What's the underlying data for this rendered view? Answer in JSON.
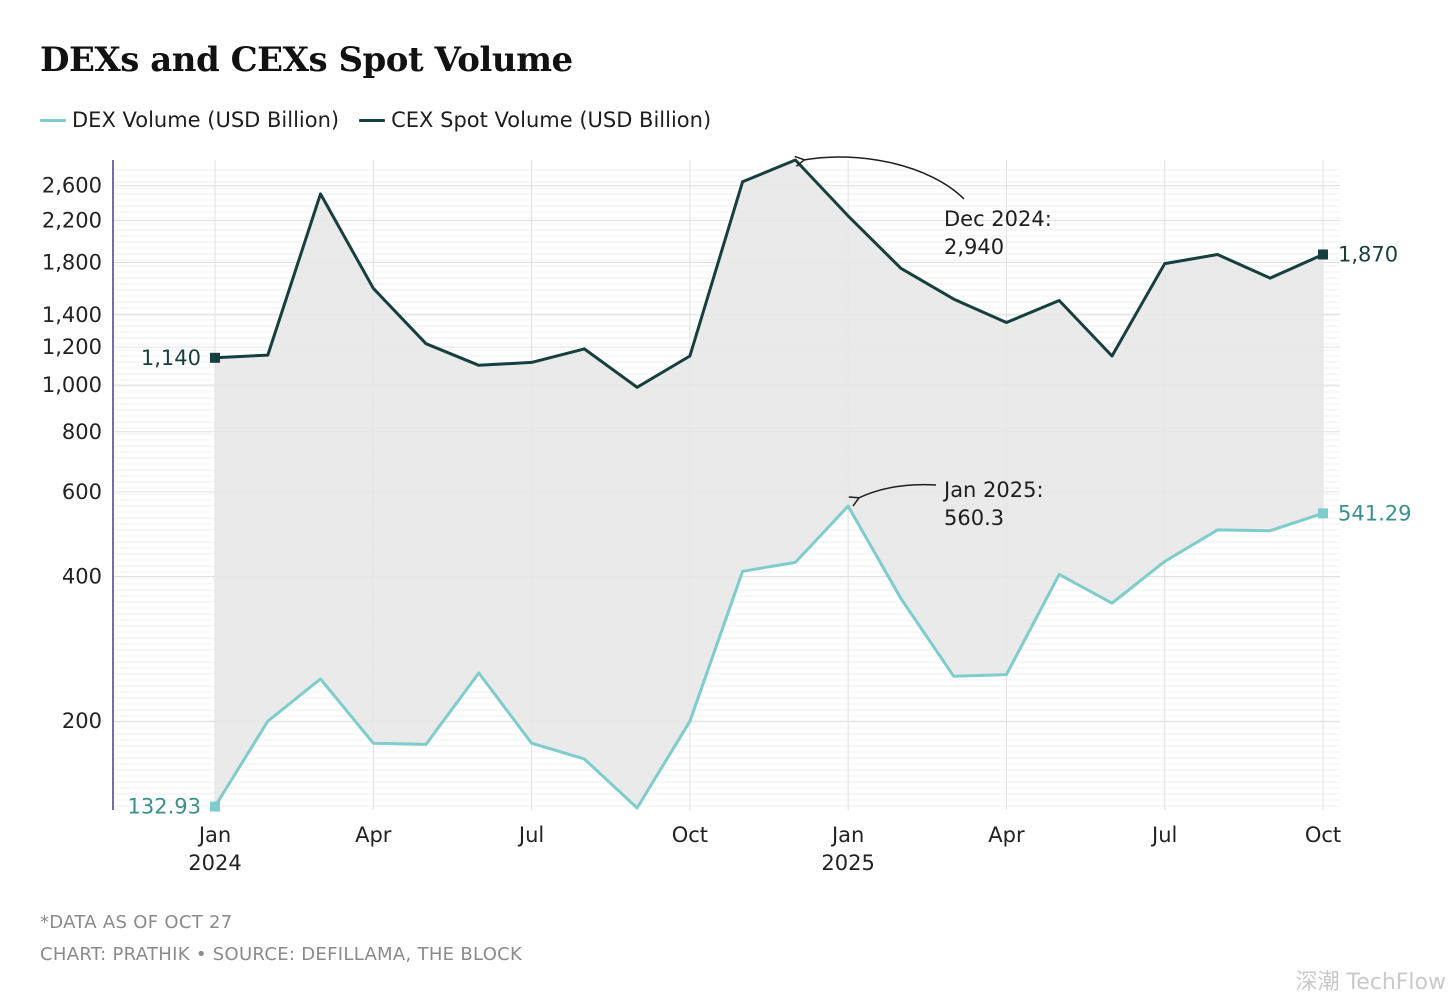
{
  "title": "DEXs and CEXs Spot Volume",
  "legend": {
    "dex": "DEX Volume (USD Billion)",
    "cex": "CEX Spot Volume (USD Billion)"
  },
  "colors": {
    "dex": "#7fcccc",
    "cex": "#173f3f",
    "fill": "#e6e6e6",
    "grid": "#e0e0e0",
    "axis": "#4b3f8f"
  },
  "chart_data": {
    "type": "line",
    "title": "DEXs and CEXs Spot Volume",
    "xlabel": "",
    "ylabel": "",
    "yscale": "log",
    "ylim": [
      132,
      2940
    ],
    "y_ticks": [
      200,
      400,
      600,
      800,
      1000,
      1200,
      1400,
      1800,
      2200,
      2600
    ],
    "y_tick_labels": [
      "200",
      "400",
      "600",
      "800",
      "1,000",
      "1,200",
      "1,400",
      "1,800",
      "2,200",
      "2,600"
    ],
    "x": [
      "2024-01",
      "2024-02",
      "2024-03",
      "2024-04",
      "2024-05",
      "2024-06",
      "2024-07",
      "2024-08",
      "2024-09",
      "2024-10",
      "2024-11",
      "2024-12",
      "2025-01",
      "2025-02",
      "2025-03",
      "2025-04",
      "2025-05",
      "2025-06",
      "2025-07",
      "2025-08",
      "2025-09",
      "2025-10"
    ],
    "x_tick_labels": [
      {
        "index": 0,
        "line1": "Jan",
        "line2": "2024"
      },
      {
        "index": 3,
        "line1": "Apr",
        "line2": ""
      },
      {
        "index": 6,
        "line1": "Jul",
        "line2": ""
      },
      {
        "index": 9,
        "line1": "Oct",
        "line2": ""
      },
      {
        "index": 12,
        "line1": "Jan",
        "line2": "2025"
      },
      {
        "index": 15,
        "line1": "Apr",
        "line2": ""
      },
      {
        "index": 18,
        "line1": "Jul",
        "line2": ""
      },
      {
        "index": 21,
        "line1": "Oct",
        "line2": ""
      }
    ],
    "series": [
      {
        "name": "CEX Spot Volume (USD Billion)",
        "key": "cex",
        "values": [
          1140,
          1155,
          2500,
          1590,
          1220,
          1100,
          1115,
          1190,
          990,
          1150,
          2650,
          2940,
          2250,
          1750,
          1510,
          1350,
          1500,
          1150,
          1790,
          1870,
          1670,
          1870
        ],
        "start_label": "1,140",
        "end_label": "1,870"
      },
      {
        "name": "DEX Volume (USD Billion)",
        "key": "dex",
        "values": [
          132.93,
          200,
          245,
          180,
          179,
          252,
          180,
          167,
          132,
          200,
          410,
          428,
          560.3,
          360,
          248,
          250,
          404,
          352,
          430,
          500,
          498,
          541.29
        ],
        "start_label": "132.93",
        "end_label": "541.29"
      }
    ],
    "annotations": [
      {
        "series": "cex",
        "index": 11,
        "line1": "Dec 2024:",
        "line2": "2,940"
      },
      {
        "series": "dex",
        "index": 12,
        "line1": "Jan 2025:",
        "line2": "560.3"
      }
    ]
  },
  "footer": {
    "note": "*DATA AS OF OCT 27",
    "source": "CHART: PRATHIK • SOURCE: DEFILLAMA, THE BLOCK"
  },
  "watermark": "深潮 TechFlow"
}
